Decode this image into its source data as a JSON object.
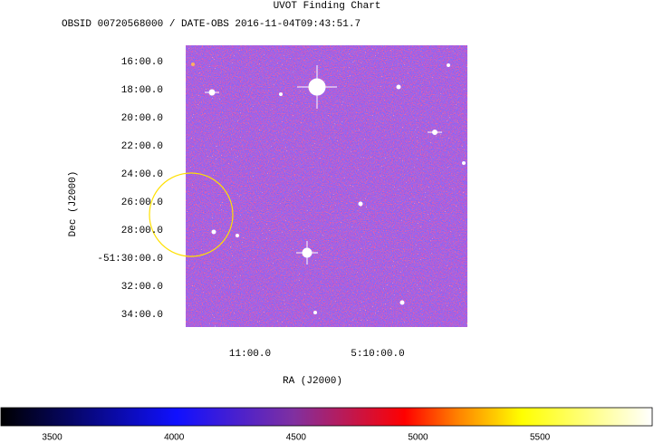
{
  "chart_data": {
    "type": "image",
    "title": "UVOT Finding Chart",
    "subtitle": "OBSID 00720568000 / DATE-OBS 2016-11-04T09:43:51.7",
    "xlabel": "RA (J2000)",
    "ylabel": "Dec (J2000)",
    "xlim": [
      77.8759,
      77.3245
    ],
    "xticks": [
      {
        "value": 77.75,
        "label": "11:00.0"
      },
      {
        "value": 77.5,
        "label": "5:10:00.0"
      }
    ],
    "ylim": [
      -51.5817,
      -51.2473
    ],
    "yticks": [
      {
        "value": -51.26667,
        "label": "16:00.0"
      },
      {
        "value": -51.3,
        "label": "18:00.0"
      },
      {
        "value": -51.33333,
        "label": "20:00.0"
      },
      {
        "value": -51.36667,
        "label": "22:00.0"
      },
      {
        "value": -51.4,
        "label": "24:00.0"
      },
      {
        "value": -51.43333,
        "label": "26:00.0"
      },
      {
        "value": -51.46667,
        "label": "28:00.0"
      },
      {
        "value": -51.5,
        "label": "-51:30:00.0"
      },
      {
        "value": -51.53333,
        "label": "32:00.0"
      },
      {
        "value": -51.56667,
        "label": "34:00.0"
      }
    ],
    "colorbar": {
      "lim": [
        3290,
        5960
      ],
      "ticks": [
        3500,
        4000,
        4500,
        5000,
        5500
      ]
    }
  }
}
